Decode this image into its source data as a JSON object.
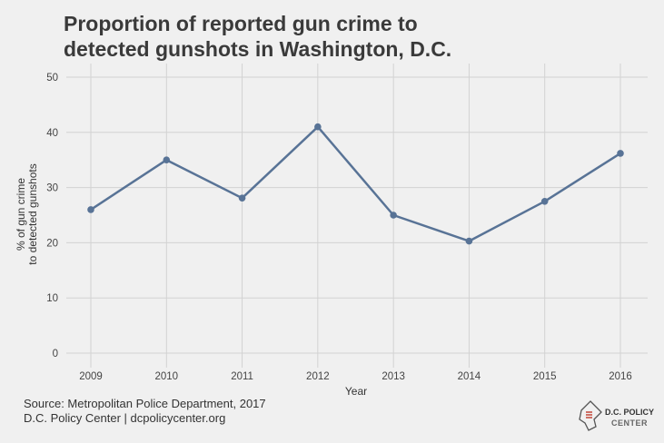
{
  "chart_data": {
    "type": "line",
    "title_lines": [
      "Proportion of reported gun crime to",
      "detected gunshots in Washington, D.C."
    ],
    "xlabel": "Year",
    "ylabel_lines": [
      "% of gun crime",
      "to detected gunshots"
    ],
    "categories": [
      "2009",
      "2010",
      "2011",
      "2012",
      "2013",
      "2014",
      "2015",
      "2016"
    ],
    "values": [
      26,
      35,
      28.1,
      41,
      25,
      20.3,
      27.5,
      36.2
    ],
    "yticks": [
      0,
      10,
      20,
      30,
      40,
      50
    ],
    "ylim": [
      0,
      50
    ],
    "grid": true,
    "line_color": "#587396",
    "grid_color": "#d2d2d2"
  },
  "footer": {
    "source": "Source: Metropolitan Police Department, 2017",
    "credit": "D.C. Policy Center | dcpolicycenter.org"
  },
  "logo": {
    "line1": "D.C. POLICY",
    "line2": "CENTER"
  }
}
